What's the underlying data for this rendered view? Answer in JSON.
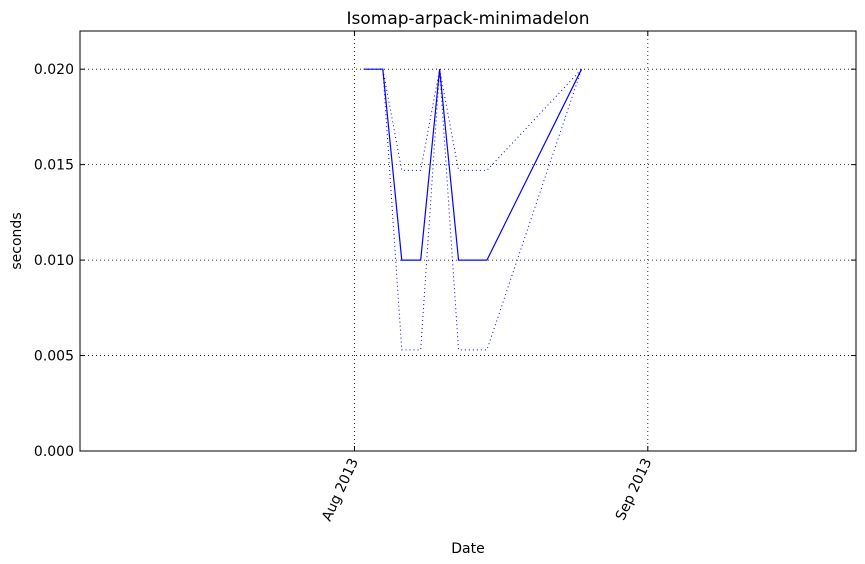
{
  "chart_data": {
    "type": "line",
    "title": "Isomap-arpack-minimadelon",
    "xlabel": "Date",
    "ylabel": "seconds",
    "x_axis_type": "date",
    "xlim": [
      "2013-07-03",
      "2013-09-23"
    ],
    "ylim": [
      0,
      0.022
    ],
    "yticks": [
      0.0,
      0.005,
      0.01,
      0.015,
      0.02
    ],
    "ytick_labels": [
      "0.000",
      "0.005",
      "0.010",
      "0.015",
      "0.020"
    ],
    "xticks": [
      "2013-08-01",
      "2013-09-01"
    ],
    "xtick_labels": [
      "Aug 2013",
      "Sep 2013"
    ],
    "grid": true,
    "series": [
      {
        "role": "mean",
        "color": "#0000ff",
        "linestyle": "solid",
        "x": [
          "2013-08-02",
          "2013-08-04",
          "2013-08-06",
          "2013-08-08",
          "2013-08-10",
          "2013-08-12",
          "2013-08-15",
          "2013-08-25"
        ],
        "y": [
          0.02,
          0.02,
          0.01,
          0.01,
          0.02,
          0.01,
          0.01,
          0.02
        ]
      },
      {
        "role": "upper",
        "color": "#0000ff",
        "linestyle": "dotted",
        "x": [
          "2013-08-02",
          "2013-08-04",
          "2013-08-06",
          "2013-08-08",
          "2013-08-10",
          "2013-08-12",
          "2013-08-15",
          "2013-08-25"
        ],
        "y": [
          0.02,
          0.02,
          0.0147,
          0.0147,
          0.02,
          0.0147,
          0.0147,
          0.02
        ]
      },
      {
        "role": "lower",
        "color": "#0000ff",
        "linestyle": "dotted",
        "x": [
          "2013-08-02",
          "2013-08-04",
          "2013-08-06",
          "2013-08-08",
          "2013-08-10",
          "2013-08-12",
          "2013-08-15",
          "2013-08-25"
        ],
        "y": [
          0.02,
          0.02,
          0.0053,
          0.0053,
          0.02,
          0.0053,
          0.0053,
          0.02
        ]
      }
    ]
  }
}
